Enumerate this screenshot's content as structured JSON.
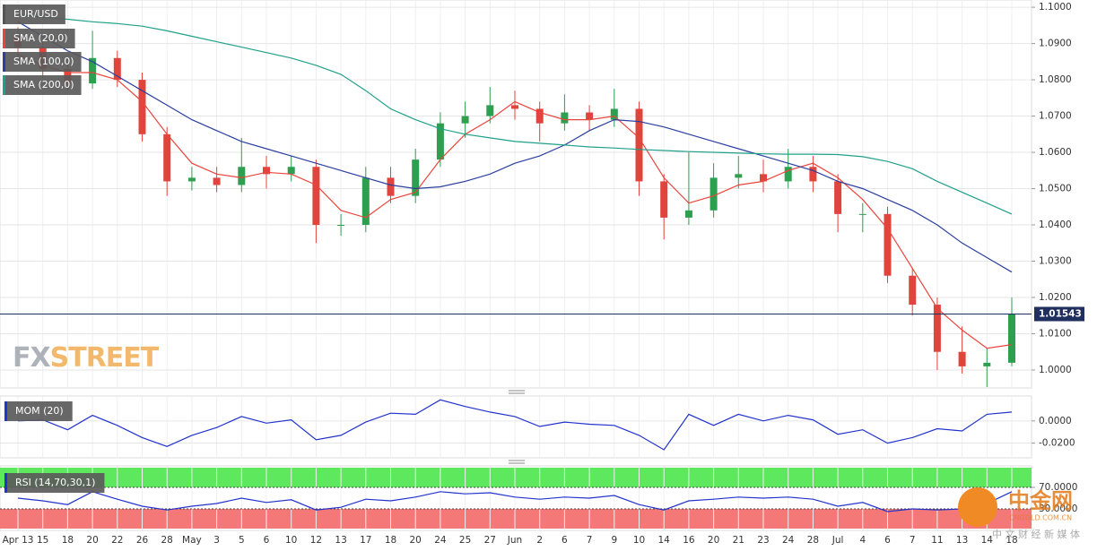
{
  "chart_data": [
    {
      "type": "candlestick",
      "name": "EUR/USD",
      "categories": [
        "Apr 13",
        "15",
        "18",
        "20",
        "22",
        "26",
        "28",
        "May",
        "3",
        "5",
        "6",
        "10",
        "12",
        "13",
        "17",
        "18",
        "20",
        "24",
        "25",
        "27",
        "Jun",
        "2",
        "6",
        "7",
        "9",
        "10",
        "14",
        "16",
        "20",
        "21",
        "23",
        "24",
        "28",
        "Jul",
        "4",
        "6",
        "7",
        "11",
        "13",
        "14",
        "18"
      ],
      "open": [
        1.092,
        1.089,
        1.083,
        1.079,
        1.086,
        1.08,
        1.065,
        1.052,
        1.053,
        1.051,
        1.056,
        1.054,
        1.056,
        1.04,
        1.04,
        1.053,
        1.048,
        1.058,
        1.068,
        1.07,
        1.073,
        1.072,
        1.068,
        1.071,
        1.069,
        1.072,
        1.052,
        1.042,
        1.044,
        1.053,
        1.054,
        1.052,
        1.056,
        1.052,
        1.043,
        1.043,
        1.026,
        1.018,
        1.005,
        1.001,
        1.002
      ],
      "high": [
        1.0945,
        1.0915,
        1.0855,
        1.0935,
        1.088,
        1.082,
        1.067,
        1.056,
        1.056,
        1.064,
        1.059,
        1.059,
        1.058,
        1.043,
        1.056,
        1.056,
        1.061,
        1.071,
        1.074,
        1.078,
        1.077,
        1.074,
        1.076,
        1.073,
        1.0775,
        1.074,
        1.054,
        1.06,
        1.057,
        1.059,
        1.058,
        1.061,
        1.059,
        1.054,
        1.046,
        1.045,
        1.028,
        1.02,
        1.012,
        1.006,
        1.02
      ],
      "low": [
        1.0865,
        1.0805,
        1.077,
        1.0775,
        1.078,
        1.063,
        1.048,
        1.0495,
        1.049,
        1.049,
        1.05,
        1.052,
        1.035,
        1.037,
        1.038,
        1.046,
        1.046,
        1.056,
        1.064,
        1.068,
        1.069,
        1.063,
        1.066,
        1.066,
        1.067,
        1.048,
        1.036,
        1.04,
        1.042,
        1.05,
        1.049,
        1.05,
        1.049,
        1.038,
        1.038,
        1.024,
        1.015,
        1.0,
        0.999,
        0.9953,
        1.001
      ],
      "close": [
        1.089,
        1.083,
        1.079,
        1.086,
        1.08,
        1.065,
        1.052,
        1.053,
        1.051,
        1.056,
        1.054,
        1.056,
        1.04,
        1.04,
        1.053,
        1.048,
        1.058,
        1.068,
        1.07,
        1.073,
        1.072,
        1.068,
        1.071,
        1.069,
        1.072,
        1.052,
        1.042,
        1.044,
        1.053,
        1.054,
        1.052,
        1.056,
        1.052,
        1.043,
        1.043,
        1.026,
        1.018,
        1.005,
        1.001,
        1.002,
        1.0154
      ],
      "up_color": "#2e9e4f",
      "down_color": "#e0443c",
      "series": [
        {
          "name": "SMA (20,0)",
          "color": "#e8453c",
          "values": [
            1.087,
            1.084,
            1.082,
            1.082,
            1.08,
            1.074,
            1.065,
            1.057,
            1.054,
            1.053,
            1.0545,
            1.054,
            1.051,
            1.044,
            1.042,
            1.047,
            1.049,
            1.058,
            1.065,
            1.069,
            1.074,
            1.071,
            1.069,
            1.069,
            1.07,
            1.064,
            1.053,
            1.046,
            1.048,
            1.051,
            1.052,
            1.055,
            1.057,
            1.053,
            1.047,
            1.039,
            1.028,
            1.017,
            1.011,
            1.006,
            1.007
          ]
        },
        {
          "name": "SMA (100,0)",
          "color": "#2b3f9e",
          "values": [
            1.096,
            1.092,
            1.088,
            1.085,
            1.081,
            1.077,
            1.073,
            1.069,
            1.066,
            1.063,
            1.061,
            1.059,
            1.057,
            1.055,
            1.053,
            1.051,
            1.05,
            1.0505,
            1.052,
            1.054,
            1.057,
            1.059,
            1.062,
            1.066,
            1.069,
            1.0685,
            1.067,
            1.065,
            1.063,
            1.061,
            1.059,
            1.057,
            1.055,
            1.052,
            1.05,
            1.047,
            1.044,
            1.04,
            1.035,
            1.031,
            1.027
          ]
        },
        {
          "name": "SMA (200,0)",
          "color": "#1fa08a",
          "values": [
            1.098,
            1.0972,
            1.0967,
            1.096,
            1.0955,
            1.0948,
            1.0935,
            1.092,
            1.0905,
            1.089,
            1.0875,
            1.086,
            1.084,
            1.0815,
            1.077,
            1.072,
            1.069,
            1.0665,
            1.065,
            1.064,
            1.063,
            1.0625,
            1.062,
            1.0615,
            1.0612,
            1.0608,
            1.0605,
            1.0602,
            1.06,
            1.0598,
            1.0596,
            1.0595,
            1.0595,
            1.0594,
            1.0588,
            1.0575,
            1.0555,
            1.052,
            1.049,
            1.046,
            1.043
          ]
        }
      ],
      "last_price": 1.01543,
      "last_price_color": "#1f2f5e",
      "ylim": [
        0.9953,
        1.102
      ],
      "yticks": [
        {
          "value": 1.1,
          "label": "1.1000"
        },
        {
          "value": 1.09,
          "label": "1.0900"
        },
        {
          "value": 1.08,
          "label": "1.0800"
        },
        {
          "value": 1.07,
          "label": "1.0700"
        },
        {
          "value": 1.06,
          "label": "1.0600"
        },
        {
          "value": 1.05,
          "label": "1.0500"
        },
        {
          "value": 1.04,
          "label": "1.0400"
        },
        {
          "value": 1.03,
          "label": "1.0300"
        },
        {
          "value": 1.02,
          "label": "1.0200"
        },
        {
          "value": 1.01,
          "label": "1.0100"
        },
        {
          "value": 1.0,
          "label": "1.0000"
        }
      ],
      "grid": true,
      "watermark": [
        "FX",
        "STREET"
      ]
    },
    {
      "type": "line",
      "name": "MOM (20)",
      "series": [
        {
          "name": "MOM (20)",
          "color": "#2233cc",
          "values": [
            0,
            0.001,
            -0.008,
            0.005,
            -0.004,
            -0.015,
            -0.023,
            -0.013,
            -0.006,
            0.004,
            -0.002,
            0.001,
            -0.017,
            -0.013,
            -0.001,
            0.007,
            0.006,
            0.019,
            0.013,
            0.008,
            0.004,
            -0.005,
            -0.001,
            -0.003,
            -0.004,
            -0.013,
            -0.026,
            0.006,
            -0.004,
            0.006,
            0,
            0.005,
            0.001,
            -0.012,
            -0.008,
            -0.02,
            -0.015,
            -0.007,
            -0.009,
            0.006,
            0.008
          ]
        }
      ],
      "ylim": [
        -0.0333,
        0.0225
      ],
      "yticks": [
        {
          "value": 0,
          "label": "0.0000"
        },
        {
          "value": -0.02,
          "label": "-0.0200"
        }
      ]
    },
    {
      "type": "line",
      "name": "RSI (14,70,30,1)",
      "series": [
        {
          "name": "RSI (14,70,30,1)",
          "color": "#2233cc",
          "values": [
            50,
            45,
            38,
            62,
            48,
            35,
            28,
            35,
            40,
            50,
            42,
            47,
            28,
            33,
            48,
            45,
            52,
            62,
            58,
            60,
            52,
            48,
            52,
            50,
            55,
            38,
            28,
            45,
            48,
            52,
            50,
            52,
            48,
            35,
            42,
            25,
            30,
            28,
            30,
            40,
            62
          ]
        }
      ],
      "ylim": [
        -6.7,
        106.7
      ],
      "yticks": [
        {
          "value": 70,
          "label": "70.0000"
        },
        {
          "value": 30,
          "label": "30.0000"
        }
      ],
      "overbought_color": "#5ee85e",
      "oversold_color": "#f47878"
    }
  ],
  "logo": {
    "title": "中金网",
    "subtitle": "中 文 财 经 新 媒 体",
    "site": "CNGOLD.COM.CN"
  }
}
